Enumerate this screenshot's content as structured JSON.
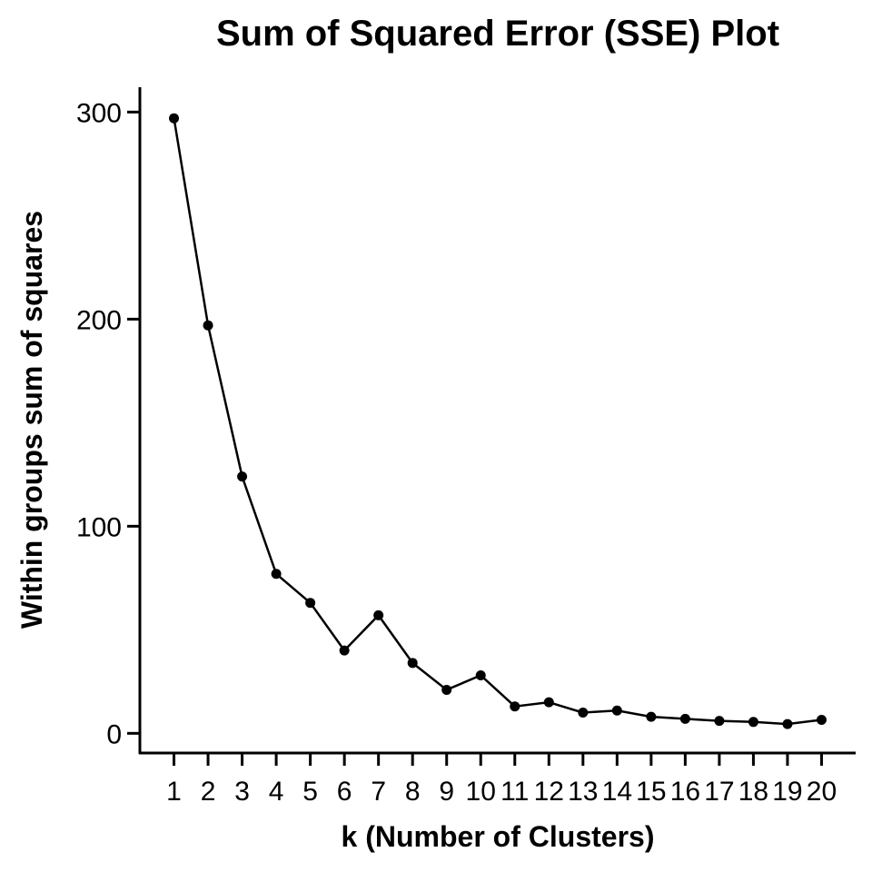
{
  "chart_data": {
    "type": "line",
    "title": "Sum of Squared Error (SSE) Plot",
    "xlabel": "k (Number of Clusters)",
    "ylabel": "Within groups sum of squares",
    "x": [
      1,
      2,
      3,
      4,
      5,
      6,
      7,
      8,
      9,
      10,
      11,
      12,
      13,
      14,
      15,
      16,
      17,
      18,
      19,
      20
    ],
    "series": [
      {
        "values": [
          297,
          197,
          124,
          77,
          63,
          40,
          57,
          34,
          21,
          28,
          13,
          15,
          10,
          11,
          8,
          7,
          6,
          5.5,
          4.5,
          6.5
        ]
      }
    ],
    "xlim": [
      0,
      21
    ],
    "ylim": [
      -9.5,
      312
    ],
    "y_ticks": [
      0,
      100,
      200,
      300
    ],
    "x_ticks": [
      1,
      2,
      3,
      4,
      5,
      6,
      7,
      8,
      9,
      10,
      11,
      12,
      13,
      14,
      15,
      16,
      17,
      18,
      19,
      20
    ],
    "grid": false,
    "legend": "none",
    "colors": {
      "line": "#000000",
      "points": "#000000"
    }
  }
}
